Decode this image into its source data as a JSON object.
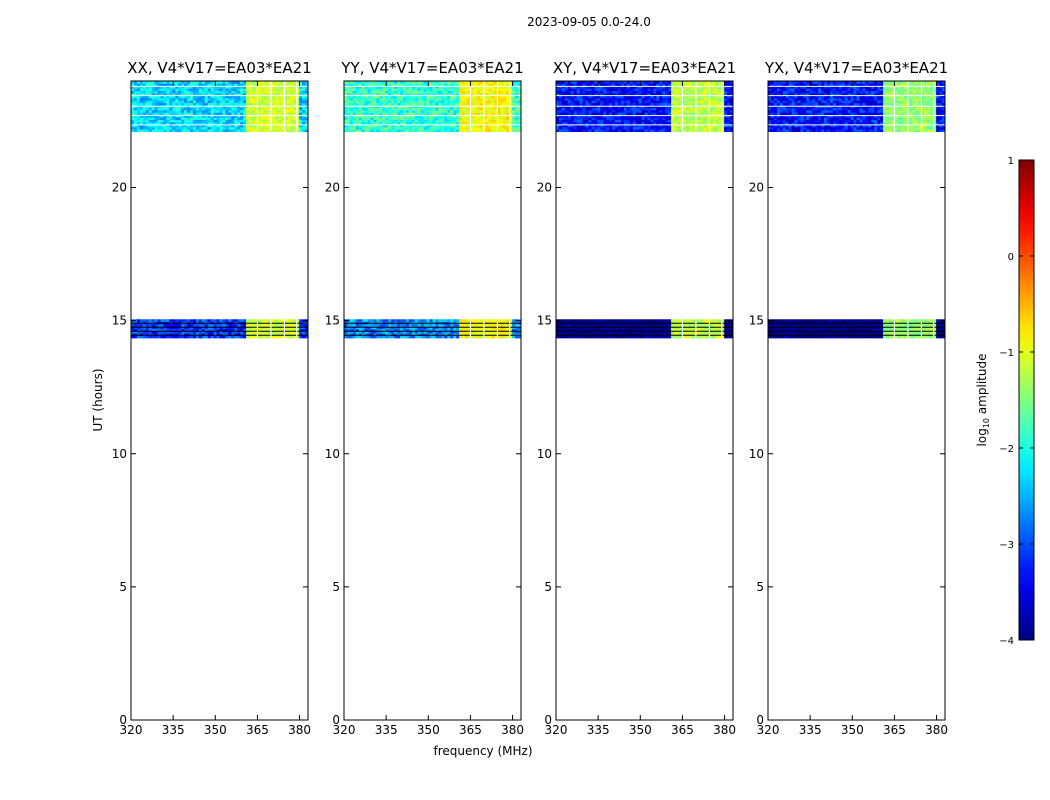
{
  "figure": {
    "suptitle": "2023-09-05 0.0-24.0"
  },
  "chart_data": {
    "type": "heatmap",
    "ylabel": "UT (hours)",
    "xlabel": "frequency (MHz)",
    "xlim": [
      320,
      383
    ],
    "ylim": [
      0,
      24
    ],
    "xticks": [
      320,
      335,
      350,
      365,
      380
    ],
    "yticks": [
      0,
      5,
      10,
      15,
      20
    ],
    "time_blocks": [
      {
        "start": 22.1,
        "end": 24.0,
        "gap_lines": [
          22.35,
          22.7,
          23.05,
          23.45,
          23.8
        ]
      },
      {
        "start": 14.35,
        "end": 15.05,
        "gap_lines": [
          14.45,
          14.6,
          14.75,
          14.9
        ]
      }
    ],
    "bright_band": {
      "start": 360.5,
      "end": 379.5
    },
    "bright_gaps": [
      365,
      369.8,
      374.6,
      379
    ],
    "panels": [
      {
        "title": "XX, V4*V17=EA03*EA21",
        "base_log": -2.3,
        "band_log": -1.1
      },
      {
        "title": "YY, V4*V17=EA03*EA21",
        "base_log": -1.9,
        "band_log": -0.9
      },
      {
        "title": "XY, V4*V17=EA03*EA21",
        "base_log": -3.3,
        "band_log": -1.2
      },
      {
        "title": "YX, V4*V17=EA03*EA21",
        "base_log": -3.3,
        "band_log": -1.4
      }
    ],
    "colorbar": {
      "label": "log",
      "label_sub": "10",
      "label_rest": " amplitude",
      "range": [
        -4,
        1
      ],
      "ticks": [
        "1",
        "0",
        "−1",
        "−2",
        "−3",
        "−4"
      ],
      "colormap": "jet"
    }
  }
}
